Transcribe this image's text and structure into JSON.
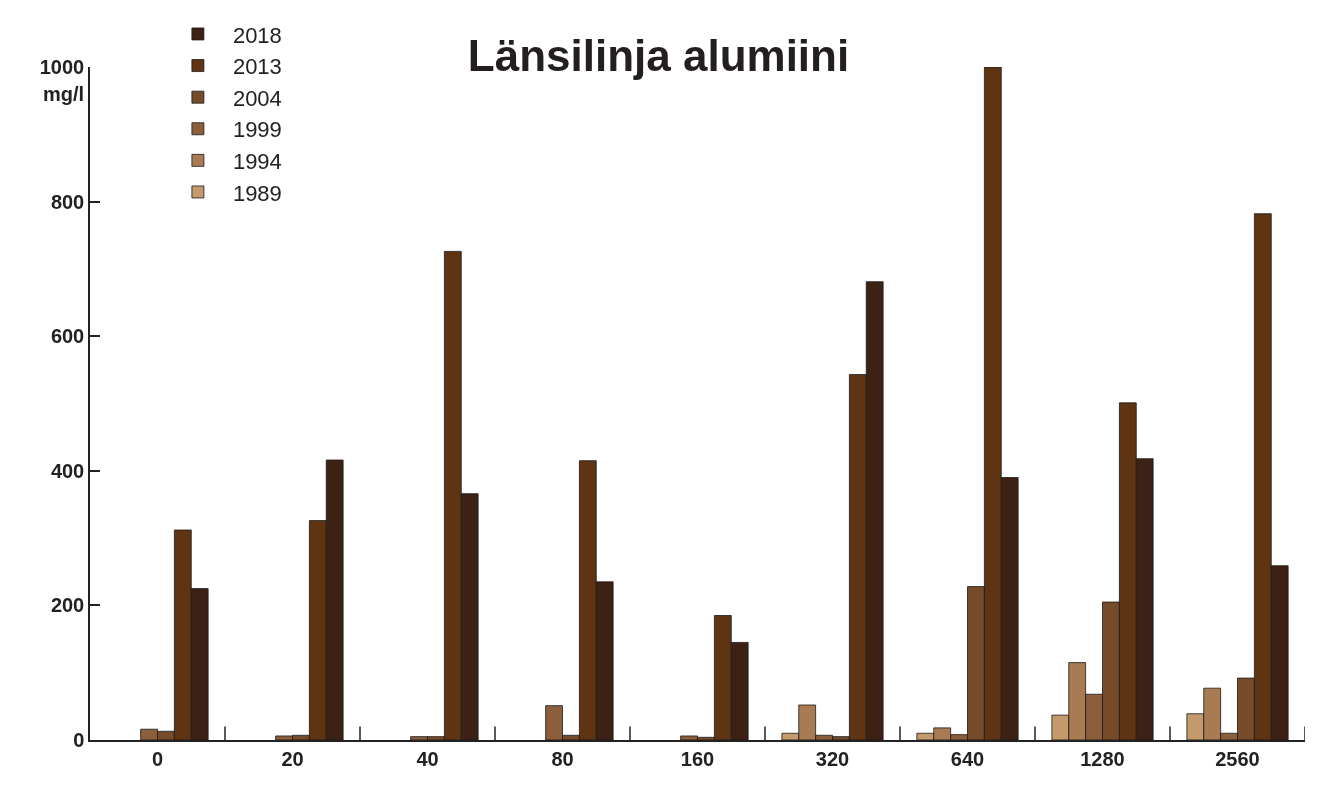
{
  "chart_data": {
    "type": "bar",
    "title": "Länsilinja alumiini",
    "ylabel": "mg/l",
    "categories": [
      "0",
      "20",
      "40",
      "80",
      "160",
      "320",
      "640",
      "1280",
      "2560"
    ],
    "series": [
      {
        "name": "1989",
        "color": "#c49a6c",
        "values": [
          null,
          null,
          null,
          null,
          null,
          10,
          10,
          37,
          39
        ]
      },
      {
        "name": "1994",
        "color": "#a87b52",
        "values": [
          null,
          null,
          null,
          null,
          null,
          52,
          18,
          115,
          77
        ]
      },
      {
        "name": "1999",
        "color": "#8b5e3c",
        "values": [
          16,
          6,
          5,
          51,
          6,
          7,
          8,
          68,
          10
        ]
      },
      {
        "name": "2004",
        "color": "#764b29",
        "values": [
          13,
          7,
          5,
          7,
          4,
          5,
          228,
          205,
          92
        ]
      },
      {
        "name": "2013",
        "color": "#5e3413",
        "values": [
          312,
          326,
          726,
          415,
          185,
          543,
          1000,
          501,
          782
        ]
      },
      {
        "name": "2018",
        "color": "#3c2114",
        "values": [
          225,
          416,
          366,
          235,
          145,
          681,
          390,
          418,
          259
        ]
      }
    ],
    "ylim": [
      0,
      1000
    ],
    "yticks": [
      0,
      200,
      400,
      600,
      800,
      1000
    ],
    "legend": "top left"
  }
}
